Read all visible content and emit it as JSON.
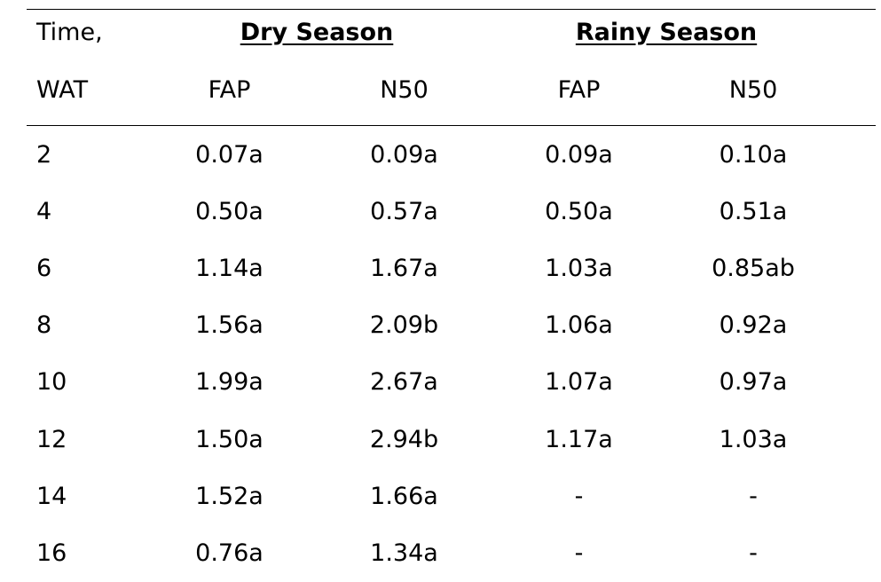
{
  "header": {
    "time_label_line1": "Time,",
    "time_label_line2": "WAT",
    "season_dry": "Dry Season",
    "season_rainy": "Rainy Season",
    "sub_columns": [
      "FAP",
      "N50",
      "FAP",
      "N50"
    ]
  },
  "rows": [
    [
      "2",
      "0.07a",
      "0.09a",
      "0.09a",
      "0.10a"
    ],
    [
      "4",
      "0.50a",
      "0.57a",
      "0.50a",
      "0.51a"
    ],
    [
      "6",
      "1.14a",
      "1.67a",
      "1.03a",
      "0.85ab"
    ],
    [
      "8",
      "1.56a",
      "2.09b",
      "1.06a",
      "0.92a"
    ],
    [
      "10",
      "1.99a",
      "2.67a",
      "1.07a",
      "0.97a"
    ],
    [
      "12",
      "1.50a",
      "2.94b",
      "1.17a",
      "1.03a"
    ],
    [
      "14",
      "1.52a",
      "1.66a",
      "-",
      "-"
    ],
    [
      "16",
      "0.76a",
      "1.34a",
      "-",
      "-"
    ]
  ]
}
